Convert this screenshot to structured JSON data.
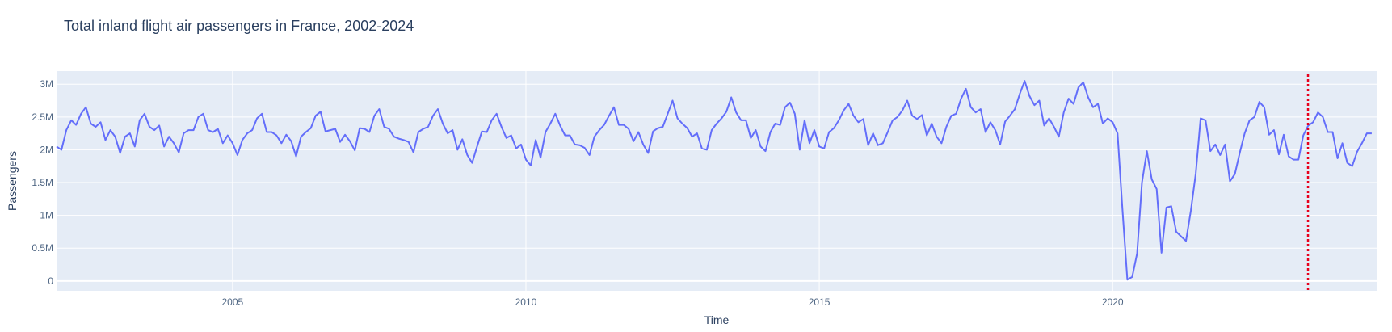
{
  "chart_data": {
    "type": "line",
    "title": "Total inland flight air passengers in France, 2002-2024",
    "xlabel": "Time",
    "ylabel": "Passengers",
    "x_start": "2002-01",
    "x_frequency": "monthly",
    "xlim": [
      2002.0,
      2024.5
    ],
    "ylim": [
      -150000,
      3200000
    ],
    "x_ticks": [
      {
        "value": 2005,
        "label": "2005"
      },
      {
        "value": 2010,
        "label": "2010"
      },
      {
        "value": 2015,
        "label": "2015"
      },
      {
        "value": 2020,
        "label": "2020"
      }
    ],
    "y_ticks": [
      {
        "value": 0,
        "label": "0"
      },
      {
        "value": 500000,
        "label": "0.5M"
      },
      {
        "value": 1000000,
        "label": "1M"
      },
      {
        "value": 1500000,
        "label": "1.5M"
      },
      {
        "value": 2000000,
        "label": "2M"
      },
      {
        "value": 2500000,
        "label": "2.5M"
      },
      {
        "value": 3000000,
        "label": "3M"
      }
    ],
    "grid": true,
    "vline": {
      "x": 2023.33,
      "style": "dotted",
      "color": "#e8001c"
    },
    "colors": {
      "line": "#636efa",
      "plot_bg": "#e5ecf6",
      "grid": "#ffffff",
      "text": "#2a3f5f",
      "axis_text": "#506784"
    },
    "series": [
      {
        "values": [
          2050000,
          2000000,
          2300000,
          2450000,
          2380000,
          2550000,
          2650000,
          2400000,
          2350000,
          2420000,
          2150000,
          2300000,
          2200000,
          1950000,
          2200000,
          2250000,
          2050000,
          2450000,
          2550000,
          2350000,
          2300000,
          2370000,
          2050000,
          2200000,
          2100000,
          1960000,
          2250000,
          2300000,
          2300000,
          2500000,
          2550000,
          2300000,
          2270000,
          2320000,
          2100000,
          2220000,
          2100000,
          1920000,
          2150000,
          2250000,
          2300000,
          2480000,
          2550000,
          2270000,
          2270000,
          2220000,
          2100000,
          2230000,
          2130000,
          1900000,
          2200000,
          2270000,
          2330000,
          2520000,
          2580000,
          2280000,
          2300000,
          2320000,
          2120000,
          2230000,
          2130000,
          1990000,
          2330000,
          2320000,
          2270000,
          2520000,
          2620000,
          2350000,
          2320000,
          2200000,
          2170000,
          2150000,
          2120000,
          1960000,
          2270000,
          2320000,
          2350000,
          2520000,
          2620000,
          2400000,
          2250000,
          2300000,
          2000000,
          2160000,
          1920000,
          1800000,
          2050000,
          2280000,
          2270000,
          2450000,
          2550000,
          2350000,
          2180000,
          2220000,
          2020000,
          2080000,
          1850000,
          1760000,
          2150000,
          1880000,
          2270000,
          2400000,
          2550000,
          2370000,
          2220000,
          2220000,
          2080000,
          2070000,
          2030000,
          1920000,
          2200000,
          2300000,
          2380000,
          2520000,
          2650000,
          2380000,
          2380000,
          2320000,
          2130000,
          2270000,
          2080000,
          1950000,
          2280000,
          2330000,
          2350000,
          2550000,
          2750000,
          2480000,
          2400000,
          2330000,
          2200000,
          2250000,
          2020000,
          2000000,
          2300000,
          2400000,
          2480000,
          2580000,
          2800000,
          2570000,
          2450000,
          2450000,
          2180000,
          2300000,
          2050000,
          1980000,
          2270000,
          2400000,
          2380000,
          2650000,
          2720000,
          2550000,
          2000000,
          2450000,
          2100000,
          2300000,
          2050000,
          2020000,
          2270000,
          2330000,
          2450000,
          2600000,
          2700000,
          2520000,
          2420000,
          2470000,
          2070000,
          2250000,
          2070000,
          2100000,
          2270000,
          2450000,
          2500000,
          2600000,
          2750000,
          2520000,
          2470000,
          2530000,
          2220000,
          2400000,
          2200000,
          2100000,
          2350000,
          2520000,
          2550000,
          2780000,
          2930000,
          2650000,
          2570000,
          2620000,
          2270000,
          2420000,
          2300000,
          2080000,
          2430000,
          2520000,
          2620000,
          2850000,
          3050000,
          2820000,
          2680000,
          2750000,
          2370000,
          2480000,
          2350000,
          2200000,
          2570000,
          2780000,
          2700000,
          2950000,
          3030000,
          2800000,
          2650000,
          2700000,
          2400000,
          2480000,
          2420000,
          2250000,
          1100000,
          20000,
          60000,
          420000,
          1500000,
          1980000,
          1550000,
          1400000,
          430000,
          1120000,
          1140000,
          750000,
          680000,
          610000,
          1070000,
          1640000,
          2480000,
          2450000,
          1980000,
          2080000,
          1920000,
          2080000,
          1520000,
          1630000,
          1950000,
          2250000,
          2450000,
          2500000,
          2730000,
          2650000,
          2230000,
          2300000,
          1930000,
          2230000,
          1900000,
          1850000,
          1850000,
          2220000,
          2370000,
          2420000,
          2570000,
          2500000,
          2270000,
          2270000,
          1870000,
          2100000,
          1800000,
          1750000,
          1970000,
          2100000,
          2250000,
          2250000
        ]
      }
    ]
  }
}
